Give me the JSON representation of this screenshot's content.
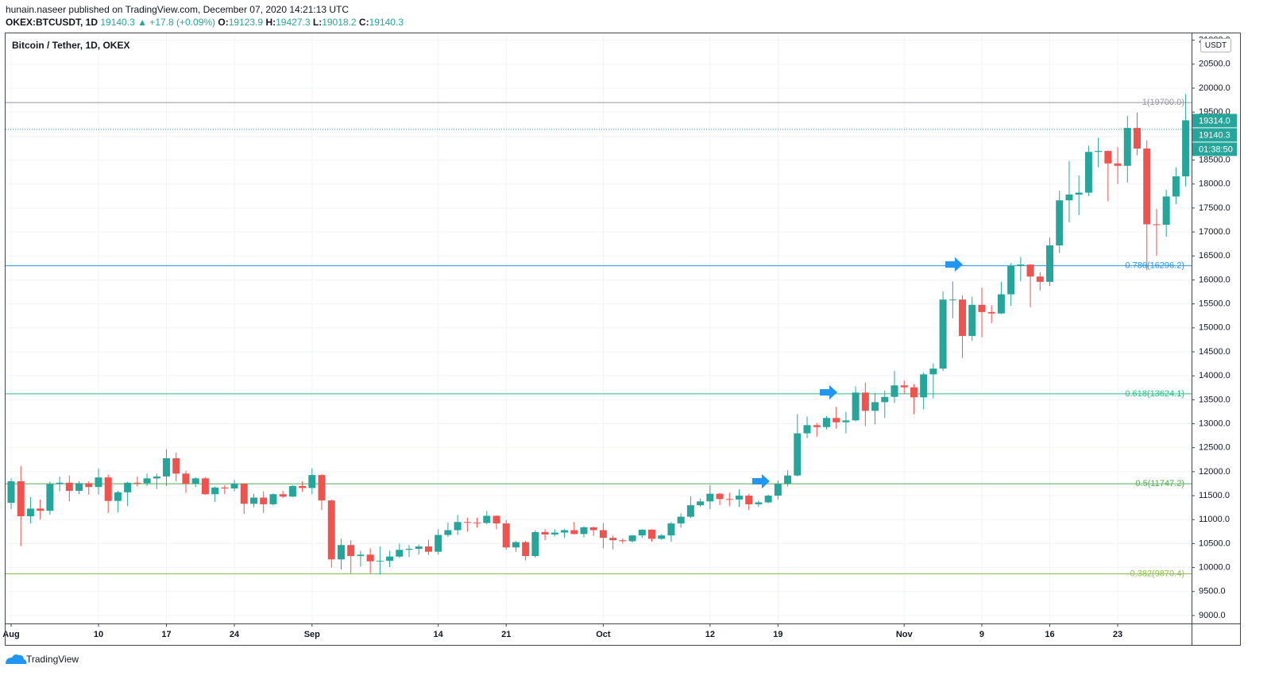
{
  "header": {
    "publisher": "hunain.naseer published on TradingView.com, December 07, 2020 14:21:13 UTC",
    "symbol": "OKEX:BTCUSDT, 1D",
    "price": "19140.3",
    "change": "▲ +17.8 (+0.09%)",
    "o_label": "O:",
    "o": "19123.9",
    "h_label": "H:",
    "h": "19427.3",
    "l_label": "L:",
    "l": "19018.2",
    "c_label": "C:",
    "c": "19140.3"
  },
  "footer": {
    "brand": "TradingView"
  },
  "chart_data": {
    "type": "candlestick",
    "title": "Bitcoin / Tether, 1D, OKEX",
    "currency": "USDT",
    "up_color": "#26a69a",
    "down_color": "#ef5350",
    "grid": true,
    "categories": [
      "2020-08-01",
      "2020-08-02",
      "2020-08-03",
      "2020-08-04",
      "2020-08-05",
      "2020-08-06",
      "2020-08-07",
      "2020-08-08",
      "2020-08-09",
      "2020-08-10",
      "2020-08-11",
      "2020-08-12",
      "2020-08-13",
      "2020-08-14",
      "2020-08-15",
      "2020-08-16",
      "2020-08-17",
      "2020-08-18",
      "2020-08-19",
      "2020-08-20",
      "2020-08-21",
      "2020-08-22",
      "2020-08-23",
      "2020-08-24",
      "2020-08-25",
      "2020-08-26",
      "2020-08-27",
      "2020-08-28",
      "2020-08-29",
      "2020-08-30",
      "2020-08-31",
      "2020-09-01",
      "2020-09-02",
      "2020-09-03",
      "2020-09-04",
      "2020-09-05",
      "2020-09-06",
      "2020-09-07",
      "2020-09-08",
      "2020-09-09",
      "2020-09-10",
      "2020-09-11",
      "2020-09-12",
      "2020-09-13",
      "2020-09-14",
      "2020-09-15",
      "2020-09-16",
      "2020-09-17",
      "2020-09-18",
      "2020-09-19",
      "2020-09-20",
      "2020-09-21",
      "2020-09-22",
      "2020-09-23",
      "2020-09-24",
      "2020-09-25",
      "2020-09-26",
      "2020-09-27",
      "2020-09-28",
      "2020-09-29",
      "2020-09-30",
      "2020-10-01",
      "2020-10-02",
      "2020-10-03",
      "2020-10-04",
      "2020-10-05",
      "2020-10-06",
      "2020-10-07",
      "2020-10-08",
      "2020-10-09",
      "2020-10-10",
      "2020-10-11",
      "2020-10-12",
      "2020-10-13",
      "2020-10-14",
      "2020-10-15",
      "2020-10-16",
      "2020-10-17",
      "2020-10-18",
      "2020-10-19",
      "2020-10-20",
      "2020-10-21",
      "2020-10-22",
      "2020-10-23",
      "2020-10-24",
      "2020-10-25",
      "2020-10-26",
      "2020-10-27",
      "2020-10-28",
      "2020-10-29",
      "2020-10-30",
      "2020-10-31",
      "2020-11-01",
      "2020-11-02",
      "2020-11-03",
      "2020-11-04",
      "2020-11-05",
      "2020-11-06",
      "2020-11-07",
      "2020-11-08",
      "2020-11-09",
      "2020-11-10",
      "2020-11-11",
      "2020-11-12",
      "2020-11-13",
      "2020-11-14",
      "2020-11-15",
      "2020-11-16",
      "2020-11-17",
      "2020-11-18",
      "2020-11-19",
      "2020-11-20",
      "2020-11-21",
      "2020-11-22",
      "2020-11-23",
      "2020-11-24",
      "2020-11-25",
      "2020-11-26",
      "2020-11-27",
      "2020-11-28",
      "2020-11-29",
      "2020-11-30"
    ],
    "open": [
      11350,
      11800,
      11070,
      11230,
      11185,
      11740,
      11770,
      11600,
      11760,
      11680,
      11880,
      11390,
      11570,
      11770,
      11760,
      11860,
      11900,
      12280,
      11960,
      11750,
      11860,
      11530,
      11670,
      11650,
      11750,
      11330,
      11460,
      11320,
      11530,
      11480,
      11700,
      11660,
      11930,
      11400,
      10170,
      10470,
      10240,
      10270,
      10130,
      10140,
      10230,
      10370,
      10390,
      10440,
      10330,
      10680,
      10780,
      10950,
      10940,
      10930,
      11080,
      10920,
      10420,
      10530,
      10240,
      10740,
      10690,
      10730,
      10780,
      10700,
      10840,
      10780,
      10620,
      10570,
      10550,
      10670,
      10790,
      10600,
      10670,
      10920,
      11060,
      11300,
      11380,
      11540,
      11430,
      11420,
      11500,
      11320,
      11360,
      11500,
      11750,
      11920,
      12800,
      12970,
      12930,
      13120,
      13030,
      13070,
      13650,
      13270,
      13450,
      13560,
      13800,
      13760,
      13550,
      14030,
      14150,
      15590,
      15590,
      14830,
      15480,
      15330,
      15300,
      15700,
      16290,
      16320,
      16070,
      15960,
      16720,
      17660,
      17780,
      17820,
      18670,
      18690,
      18430,
      18380,
      19170,
      18740,
      17160,
      17150,
      17740,
      18160
    ],
    "high": [
      11860,
      12120,
      11470,
      11420,
      11790,
      11900,
      11920,
      11800,
      11800,
      12070,
      11940,
      11600,
      11790,
      11900,
      11960,
      11960,
      12470,
      12400,
      12020,
      11880,
      11890,
      11690,
      11720,
      11830,
      11760,
      11540,
      11590,
      11550,
      11600,
      11720,
      11800,
      12070,
      11950,
      11420,
      10600,
      10570,
      10350,
      10400,
      10440,
      10350,
      10500,
      10470,
      10480,
      10580,
      10800,
      10940,
      11100,
      11040,
      11040,
      11180,
      11090,
      10990,
      10560,
      10560,
      10770,
      10800,
      10800,
      10800,
      10950,
      10860,
      10850,
      10930,
      10670,
      10610,
      10680,
      10800,
      10800,
      10700,
      10950,
      11130,
      11490,
      11440,
      11720,
      11560,
      11560,
      11630,
      11540,
      11400,
      11520,
      11820,
      12030,
      13200,
      13150,
      13020,
      13160,
      13350,
      13250,
      13780,
      13860,
      13640,
      13690,
      14100,
      13900,
      13830,
      14070,
      14260,
      15760,
      15970,
      15680,
      15650,
      15840,
      15470,
      15960,
      16350,
      16480,
      16330,
      16160,
      16880,
      17860,
      18480,
      18180,
      18800,
      18970,
      18700,
      18770,
      19420,
      19490,
      18910,
      17480,
      17880,
      18350,
      19880
    ],
    "low": [
      11220,
      10450,
      10920,
      11000,
      11100,
      11590,
      11380,
      11530,
      11520,
      11520,
      11140,
      11150,
      11280,
      11690,
      11700,
      11640,
      11700,
      11800,
      11560,
      11680,
      11520,
      11370,
      11530,
      11590,
      11120,
      11260,
      11140,
      11290,
      11450,
      11470,
      11580,
      11530,
      11200,
      10000,
      9960,
      9880,
      10020,
      9880,
      9850,
      10010,
      10200,
      10220,
      10270,
      10260,
      10270,
      10640,
      10680,
      10750,
      10830,
      10900,
      10800,
      10370,
      10330,
      10150,
      10210,
      10570,
      10650,
      10620,
      10690,
      10630,
      10660,
      10400,
      10380,
      10500,
      10520,
      10620,
      10540,
      10580,
      10540,
      10830,
      11030,
      11270,
      11220,
      11300,
      11280,
      11270,
      11200,
      11270,
      11340,
      11420,
      11690,
      11900,
      12700,
      12730,
      12880,
      12900,
      12800,
      13050,
      12950,
      12990,
      13120,
      13430,
      13620,
      13200,
      13300,
      13530,
      14100,
      15200,
      14370,
      14730,
      14800,
      15100,
      15290,
      15460,
      15970,
      15430,
      15780,
      15870,
      16560,
      17200,
      17350,
      17750,
      18350,
      17640,
      18000,
      18030,
      18600,
      16200,
      16500,
      16900,
      17580,
      17950
    ],
    "close": [
      11800,
      11070,
      11230,
      11185,
      11740,
      11770,
      11600,
      11760,
      11680,
      11880,
      11390,
      11570,
      11770,
      11760,
      11860,
      11900,
      12280,
      11960,
      11750,
      11860,
      11530,
      11670,
      11650,
      11750,
      11330,
      11460,
      11320,
      11530,
      11480,
      11700,
      11660,
      11930,
      11400,
      10170,
      10470,
      10240,
      10270,
      10130,
      10140,
      10230,
      10370,
      10390,
      10440,
      10330,
      10680,
      10780,
      10950,
      10940,
      10930,
      11080,
      10920,
      10420,
      10530,
      10240,
      10740,
      10690,
      10730,
      10780,
      10700,
      10840,
      10780,
      10620,
      10570,
      10550,
      10670,
      10790,
      10600,
      10670,
      10920,
      11060,
      11300,
      11380,
      11540,
      11430,
      11420,
      11500,
      11320,
      11360,
      11500,
      11750,
      11920,
      12800,
      12970,
      12930,
      13120,
      13030,
      13070,
      13650,
      13270,
      13450,
      13560,
      13800,
      13760,
      13550,
      14030,
      14150,
      15590,
      15590,
      14830,
      15480,
      15330,
      15300,
      15700,
      16290,
      16320,
      16070,
      15960,
      16720,
      17660,
      17780,
      17820,
      18670,
      18690,
      18430,
      18380,
      19170,
      18740,
      17160,
      17150,
      17740,
      18160,
      19330
    ],
    "xticks": [
      {
        "value": "2020-08-01",
        "label": "Aug"
      },
      {
        "value": "2020-08-10",
        "label": "10"
      },
      {
        "value": "2020-08-17",
        "label": "17"
      },
      {
        "value": "2020-08-24",
        "label": "24"
      },
      {
        "value": "2020-09-01",
        "label": "Sep"
      },
      {
        "value": "2020-09-14",
        "label": "14"
      },
      {
        "value": "2020-09-21",
        "label": "21"
      },
      {
        "value": "2020-10-01",
        "label": "Oct"
      },
      {
        "value": "2020-10-12",
        "label": "12"
      },
      {
        "value": "2020-10-19",
        "label": "19"
      },
      {
        "value": "2020-11-01",
        "label": "Nov"
      },
      {
        "value": "2020-11-09",
        "label": "9"
      },
      {
        "value": "2020-11-16",
        "label": "16"
      },
      {
        "value": "2020-11-23",
        "label": "23"
      }
    ],
    "ylim": [
      8834,
      21143
    ],
    "yticks": [
      {
        "value": 9000,
        "label": "9000.0"
      },
      {
        "value": 9500,
        "label": "9500.0"
      },
      {
        "value": 10000,
        "label": "10000.0"
      },
      {
        "value": 10500,
        "label": "10500.0"
      },
      {
        "value": 11000,
        "label": "11000.0"
      },
      {
        "value": 11500,
        "label": "11500.0"
      },
      {
        "value": 12000,
        "label": "12000.0"
      },
      {
        "value": 12500,
        "label": "12500.0"
      },
      {
        "value": 13000,
        "label": "13000.0"
      },
      {
        "value": 13500,
        "label": "13500.0"
      },
      {
        "value": 14000,
        "label": "14000.0"
      },
      {
        "value": 14500,
        "label": "14500.0"
      },
      {
        "value": 15000,
        "label": "15000.0"
      },
      {
        "value": 15500,
        "label": "15500.0"
      },
      {
        "value": 16000,
        "label": "16000.0"
      },
      {
        "value": 16500,
        "label": "16500.0"
      },
      {
        "value": 17000,
        "label": "17000.0"
      },
      {
        "value": 17500,
        "label": "17500.0"
      },
      {
        "value": 18000,
        "label": "18000.0"
      },
      {
        "value": 18500,
        "label": "18500.0"
      },
      {
        "value": 19000,
        "label": "19000.0"
      },
      {
        "value": 19500,
        "label": "19500.0"
      },
      {
        "value": 20000,
        "label": "20000.0"
      },
      {
        "value": 20500,
        "label": "20500.0"
      },
      {
        "value": 21000,
        "label": "21000.0"
      }
    ],
    "fib_levels": [
      {
        "value": 19700,
        "label": "1(19700.0)",
        "color": "#9598a1"
      },
      {
        "value": 16296.2,
        "label": "0.786(16296.2)",
        "color": "#2196f3"
      },
      {
        "value": 13624.1,
        "label": "0.618(13624.1)",
        "color": "#26c281"
      },
      {
        "value": 11747.2,
        "label": "0.5(11747.2)",
        "color": "#4caf50"
      },
      {
        "value": 9870.4,
        "label": "0.382(9870.4)",
        "color": "#8bc34a"
      }
    ],
    "price_labels": [
      {
        "value": 19314,
        "label": "19314.0"
      },
      {
        "value": 19140.3,
        "label": "19140.3"
      }
    ],
    "countdown": "01:38:50"
  }
}
